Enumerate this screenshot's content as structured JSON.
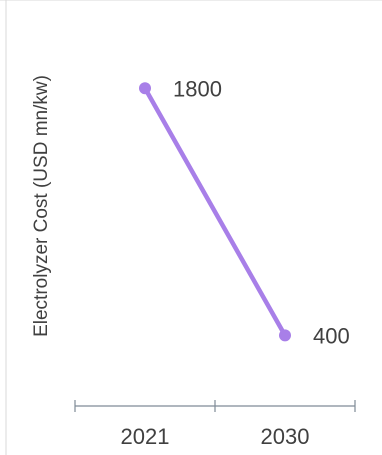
{
  "chart_data": {
    "type": "line",
    "categories": [
      "2021",
      "2030"
    ],
    "series": [
      {
        "values": [
          1800,
          400
        ],
        "color": "#a87fe8"
      }
    ],
    "data_labels": [
      "1800",
      "400"
    ],
    "title": "",
    "xlabel": "",
    "ylabel": "Electrolyzer Cost (USD mn/kw)",
    "ylim": [
      0,
      2300
    ],
    "grid": false,
    "legend": "none"
  }
}
